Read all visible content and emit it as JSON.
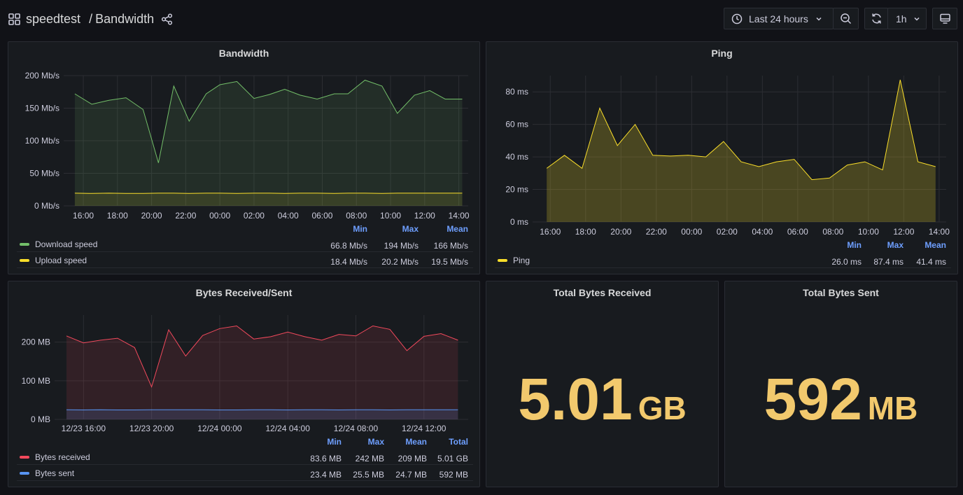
{
  "header": {
    "folder": "speedtest",
    "separator": "/",
    "title": "Bandwidth",
    "time_range": "Last 24 hours",
    "refresh_interval": "1h"
  },
  "panels": {
    "bandwidth": {
      "title": "Bandwidth",
      "legend_headers": [
        "Min",
        "Max",
        "Mean"
      ],
      "legend": [
        {
          "name": "Download speed",
          "color": "#73bf69",
          "min": "66.8 Mb/s",
          "max": "194 Mb/s",
          "mean": "166 Mb/s"
        },
        {
          "name": "Upload speed",
          "color": "#fade2a",
          "min": "18.4 Mb/s",
          "max": "20.2 Mb/s",
          "mean": "19.5 Mb/s"
        }
      ]
    },
    "ping": {
      "title": "Ping",
      "legend_headers": [
        "Min",
        "Max",
        "Mean"
      ],
      "legend": [
        {
          "name": "Ping",
          "color": "#fade2a",
          "min": "26.0 ms",
          "max": "87.4 ms",
          "mean": "41.4 ms"
        }
      ]
    },
    "bytes": {
      "title": "Bytes Received/Sent",
      "legend_headers": [
        "Min",
        "Max",
        "Mean",
        "Total"
      ],
      "legend": [
        {
          "name": "Bytes received",
          "color": "#f2495c",
          "min": "83.6 MB",
          "max": "242 MB",
          "mean": "209 MB",
          "total": "5.01 GB"
        },
        {
          "name": "Bytes sent",
          "color": "#5794f2",
          "min": "23.4 MB",
          "max": "25.5 MB",
          "mean": "24.7 MB",
          "total": "592 MB"
        }
      ]
    },
    "total_received": {
      "title": "Total Bytes Received",
      "value": "5.01",
      "unit": "GB"
    },
    "total_sent": {
      "title": "Total Bytes Sent",
      "value": "592",
      "unit": "MB"
    }
  },
  "chart_data": [
    {
      "type": "area",
      "title": "Bandwidth",
      "x_ticks": [
        "16:00",
        "18:00",
        "20:00",
        "22:00",
        "00:00",
        "02:00",
        "04:00",
        "06:00",
        "08:00",
        "10:00",
        "12:00",
        "14:00"
      ],
      "y_ticks": [
        "0 Mb/s",
        "50 Mb/s",
        "100 Mb/s",
        "150 Mb/s",
        "200 Mb/s"
      ],
      "ylim": [
        0,
        200
      ],
      "x_hours": [
        15.5,
        16.5,
        17.5,
        18.5,
        19.5,
        20.4,
        21.3,
        22.2,
        23.2,
        24.0,
        25.0,
        26.0,
        26.9,
        27.8,
        28.7,
        29.7,
        30.7,
        31.5,
        32.5,
        33.5,
        34.4,
        35.4,
        36.3,
        37.2,
        38.2
      ],
      "series": [
        {
          "name": "Download speed",
          "values": [
            172,
            156,
            162,
            166,
            148,
            66,
            184,
            130,
            172,
            186,
            191,
            165,
            171,
            179,
            170,
            164,
            172,
            172,
            193,
            184,
            142,
            170,
            177,
            164,
            164
          ]
        },
        {
          "name": "Upload speed",
          "values": [
            19.5,
            19,
            19.5,
            19,
            19,
            19.5,
            19.5,
            19,
            19.5,
            19.5,
            19,
            19.5,
            19.5,
            19,
            19.5,
            19.5,
            19,
            19.5,
            19.5,
            19,
            19.5,
            19.5,
            19.5,
            19.5,
            19.5
          ]
        }
      ]
    },
    {
      "type": "area",
      "title": "Ping",
      "x_ticks": [
        "16:00",
        "18:00",
        "20:00",
        "22:00",
        "00:00",
        "02:00",
        "04:00",
        "06:00",
        "08:00",
        "10:00",
        "12:00",
        "14:00"
      ],
      "y_ticks": [
        "0 ms",
        "20 ms",
        "40 ms",
        "60 ms",
        "80 ms"
      ],
      "ylim": [
        0,
        90
      ],
      "x_hours": [
        15.8,
        16.8,
        17.8,
        18.8,
        19.8,
        20.8,
        21.8,
        22.8,
        23.8,
        24.8,
        25.8,
        26.8,
        27.8,
        28.8,
        29.8,
        30.8,
        31.8,
        32.8,
        33.8,
        34.8,
        35.8,
        36.8,
        37.8
      ],
      "series": [
        {
          "name": "Ping",
          "values": [
            33,
            41,
            33,
            70,
            47,
            60,
            41,
            40.5,
            41,
            40,
            49.5,
            37,
            34,
            37,
            38.5,
            26,
            27,
            35,
            37,
            32,
            87.4,
            37,
            34
          ]
        }
      ]
    },
    {
      "type": "area",
      "title": "Bytes Received/Sent",
      "x_ticks": [
        "12/23 16:00",
        "12/23 20:00",
        "12/24 00:00",
        "12/24 04:00",
        "12/24 08:00",
        "12/24 12:00"
      ],
      "y_ticks": [
        "0 MB",
        "100 MB",
        "200 MB"
      ],
      "ylim": [
        0,
        270
      ],
      "x_hours": [
        15.0,
        16.0,
        17.0,
        18.0,
        19.0,
        20.0,
        21.0,
        22.0,
        23.0,
        24.0,
        25.0,
        26.0,
        27.0,
        28.0,
        29.0,
        30.0,
        31.0,
        32.0,
        33.0,
        34.0,
        35.0,
        36.0,
        37.0,
        38.0
      ],
      "series": [
        {
          "name": "Bytes received",
          "values": [
            216,
            198,
            205,
            210,
            186,
            84,
            232,
            164,
            217,
            235,
            242,
            208,
            214,
            226,
            214,
            205,
            220,
            216,
            242,
            233,
            178,
            215,
            222,
            205
          ]
        },
        {
          "name": "Bytes sent",
          "values": [
            25,
            24.5,
            25,
            24.5,
            24.5,
            25,
            25,
            25,
            25,
            24.5,
            24.5,
            25,
            25,
            24.5,
            25,
            25,
            24.5,
            25,
            25,
            24.5,
            25,
            25,
            25,
            25
          ]
        }
      ]
    }
  ]
}
